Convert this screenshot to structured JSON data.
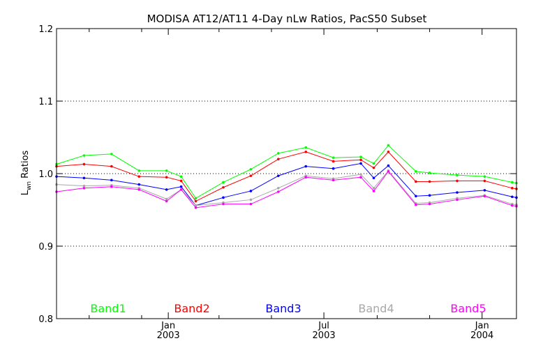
{
  "chart_data": {
    "type": "line",
    "title": "MODISA AT12/AT11 4-Day nLw Ratios, PacS50 Subset",
    "ylabel_main": "L",
    "ylabel_sub": "wn",
    "ylabel_rest": " Ratios",
    "xlabel": "",
    "ylim": [
      0.8,
      1.2
    ],
    "xlim": [
      "2002-08-24",
      "2004-02-10"
    ],
    "y_ticks": [
      "0.8",
      "0.9",
      "1.0",
      "1.1",
      "1.2"
    ],
    "y_tick_values": [
      0.8,
      0.9,
      1.0,
      1.1,
      1.2
    ],
    "gridlines_y": [
      0.9,
      1.0,
      1.1
    ],
    "grid": "dotted horizontal",
    "x_major_ticks": [
      {
        "date": "2003-01-01",
        "line1": "Jan",
        "line2": "2003"
      },
      {
        "date": "2003-07-01",
        "line1": "Jul",
        "line2": "2003"
      },
      {
        "date": "2004-01-01",
        "line1": "Jan",
        "line2": "2004"
      }
    ],
    "x_minor_ticks": [
      "2002-10-01",
      "2002-12-01",
      "2003-03-01",
      "2003-05-01",
      "2003-09-01",
      "2003-11-01"
    ],
    "x": [
      "2002-08-24",
      "2002-09-25",
      "2002-10-27",
      "2002-11-28",
      "2002-12-30",
      "2003-01-16",
      "2003-02-02",
      "2003-03-06",
      "2003-04-07",
      "2003-05-09",
      "2003-06-10",
      "2003-07-12",
      "2003-08-13",
      "2003-08-28",
      "2003-09-14",
      "2003-10-16",
      "2003-11-01",
      "2003-12-03",
      "2004-01-04",
      "2004-02-05",
      "2004-02-10"
    ],
    "legend_position": "bottom",
    "series": [
      {
        "name": "Band1",
        "color": "#00ff00",
        "values": [
          1.013,
          1.025,
          1.027,
          1.004,
          1.004,
          0.996,
          0.966,
          0.988,
          1.006,
          1.028,
          1.036,
          1.022,
          1.023,
          1.014,
          1.039,
          1.003,
          1.001,
          0.998,
          0.996,
          0.988,
          0.987
        ]
      },
      {
        "name": "Band2",
        "color": "#ff0000",
        "values": [
          1.01,
          1.013,
          1.01,
          0.996,
          0.995,
          0.99,
          0.962,
          0.981,
          0.997,
          1.02,
          1.03,
          1.017,
          1.019,
          1.008,
          1.03,
          0.989,
          0.989,
          0.99,
          0.99,
          0.98,
          0.979
        ]
      },
      {
        "name": "Band3",
        "color": "#0000ff",
        "values": [
          0.996,
          0.994,
          0.991,
          0.985,
          0.978,
          0.982,
          0.956,
          0.967,
          0.976,
          0.997,
          1.01,
          1.007,
          1.014,
          0.994,
          1.011,
          0.969,
          0.97,
          0.974,
          0.977,
          0.968,
          0.967
        ]
      },
      {
        "name": "Band4",
        "color": "#a8a8a8",
        "values": [
          0.985,
          0.983,
          0.984,
          0.98,
          0.965,
          0.978,
          0.956,
          0.96,
          0.964,
          0.98,
          0.997,
          0.993,
          0.999,
          0.98,
          1.004,
          0.959,
          0.96,
          0.966,
          0.97,
          0.958,
          0.957
        ]
      },
      {
        "name": "Band5",
        "color": "#ff00ff",
        "values": [
          0.975,
          0.98,
          0.982,
          0.978,
          0.962,
          0.978,
          0.953,
          0.958,
          0.958,
          0.975,
          0.995,
          0.991,
          0.995,
          0.976,
          1.003,
          0.957,
          0.958,
          0.964,
          0.969,
          0.956,
          0.955
        ]
      }
    ]
  }
}
